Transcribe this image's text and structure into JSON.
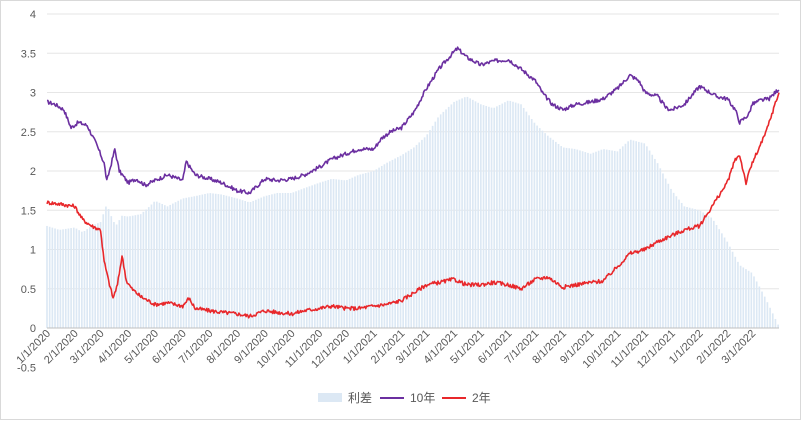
{
  "chart_data": {
    "type": "bar+line",
    "title": "",
    "xlabel": "",
    "ylabel": "",
    "ylim": [
      0,
      4
    ],
    "yticks": [
      "0",
      "0.5",
      "1",
      "1.5",
      "2",
      "2.5",
      "3",
      "3.5",
      "4"
    ],
    "ytick_values": [
      0,
      0.5,
      1,
      1.5,
      2,
      2.5,
      3,
      3.5,
      4
    ],
    "xlim": [
      "2020-01-01",
      "2022-03-31"
    ],
    "x_tick_labels": [
      "1/1/2020",
      "2/1/2020",
      "3/1/2020",
      "4/1/2020",
      "5/1/2020",
      "6/1/2020",
      "7/1/2020",
      "8/1/2020",
      "9/1/2020",
      "10/1/2020",
      "11/1/2020",
      "12/1/2020",
      "1/1/2021",
      "2/1/2021",
      "3/1/2021",
      "4/1/2021",
      "5/1/2021",
      "6/1/2021",
      "7/1/2021",
      "8/1/2021",
      "9/1/2021",
      "10/1/2021",
      "11/1/2021",
      "12/1/2021",
      "1/1/2022",
      "2/1/2022",
      "3/1/2022"
    ],
    "x_tick_dates": [
      "2020-01-01",
      "2020-02-01",
      "2020-03-01",
      "2020-04-01",
      "2020-05-01",
      "2020-06-01",
      "2020-07-01",
      "2020-08-01",
      "2020-09-01",
      "2020-10-01",
      "2020-11-01",
      "2020-12-01",
      "2021-01-01",
      "2021-02-01",
      "2021-03-01",
      "2021-04-01",
      "2021-05-01",
      "2021-06-01",
      "2021-07-01",
      "2021-08-01",
      "2021-09-01",
      "2021-10-01",
      "2021-11-01",
      "2021-12-01",
      "2022-01-01",
      "2022-02-01",
      "2022-03-01"
    ],
    "x_tick_overlap_label": "-0.5",
    "legend_position": "bottom",
    "legend": [
      {
        "name": "利差",
        "color": "#dce8f4",
        "kind": "bar"
      },
      {
        "name": "10年",
        "color": "#6b2fa0",
        "kind": "line"
      },
      {
        "name": "2年",
        "color": "#e8282b",
        "kind": "line"
      }
    ],
    "series": [
      {
        "name": "利差",
        "kind": "bar",
        "points": [
          [
            "2020-01-01",
            1.3
          ],
          [
            "2020-01-15",
            1.25
          ],
          [
            "2020-02-01",
            1.28
          ],
          [
            "2020-02-10",
            1.22
          ],
          [
            "2020-02-20",
            1.3
          ],
          [
            "2020-03-01",
            1.35
          ],
          [
            "2020-03-08",
            1.58
          ],
          [
            "2020-03-12",
            1.45
          ],
          [
            "2020-03-18",
            1.3
          ],
          [
            "2020-03-25",
            1.43
          ],
          [
            "2020-04-01",
            1.42
          ],
          [
            "2020-04-15",
            1.45
          ],
          [
            "2020-04-25",
            1.55
          ],
          [
            "2020-05-01",
            1.62
          ],
          [
            "2020-05-15",
            1.55
          ],
          [
            "2020-06-01",
            1.65
          ],
          [
            "2020-06-15",
            1.68
          ],
          [
            "2020-07-01",
            1.72
          ],
          [
            "2020-07-15",
            1.7
          ],
          [
            "2020-08-01",
            1.65
          ],
          [
            "2020-08-15",
            1.6
          ],
          [
            "2020-09-01",
            1.68
          ],
          [
            "2020-09-15",
            1.72
          ],
          [
            "2020-10-01",
            1.72
          ],
          [
            "2020-10-15",
            1.78
          ],
          [
            "2020-11-01",
            1.85
          ],
          [
            "2020-11-15",
            1.9
          ],
          [
            "2020-12-01",
            1.88
          ],
          [
            "2020-12-15",
            1.95
          ],
          [
            "2021-01-01",
            2.0
          ],
          [
            "2021-01-15",
            2.1
          ],
          [
            "2021-02-01",
            2.2
          ],
          [
            "2021-02-15",
            2.3
          ],
          [
            "2021-03-01",
            2.45
          ],
          [
            "2021-03-15",
            2.7
          ],
          [
            "2021-04-01",
            2.88
          ],
          [
            "2021-04-15",
            2.95
          ],
          [
            "2021-05-01",
            2.85
          ],
          [
            "2021-05-15",
            2.8
          ],
          [
            "2021-06-01",
            2.9
          ],
          [
            "2021-06-15",
            2.85
          ],
          [
            "2021-07-01",
            2.6
          ],
          [
            "2021-07-15",
            2.45
          ],
          [
            "2021-08-01",
            2.3
          ],
          [
            "2021-08-15",
            2.28
          ],
          [
            "2021-09-01",
            2.22
          ],
          [
            "2021-09-15",
            2.28
          ],
          [
            "2021-10-01",
            2.25
          ],
          [
            "2021-10-15",
            2.4
          ],
          [
            "2021-11-01",
            2.35
          ],
          [
            "2021-11-15",
            2.1
          ],
          [
            "2021-12-01",
            1.75
          ],
          [
            "2021-12-15",
            1.55
          ],
          [
            "2022-01-01",
            1.5
          ],
          [
            "2022-01-15",
            1.4
          ],
          [
            "2022-02-01",
            1.1
          ],
          [
            "2022-02-15",
            0.8
          ],
          [
            "2022-03-01",
            0.7
          ],
          [
            "2022-03-15",
            0.4
          ],
          [
            "2022-03-31",
            0.02
          ]
        ]
      },
      {
        "name": "10年",
        "kind": "line",
        "points": [
          [
            "2020-01-01",
            2.88
          ],
          [
            "2020-01-10",
            2.85
          ],
          [
            "2020-01-20",
            2.78
          ],
          [
            "2020-01-28",
            2.55
          ],
          [
            "2020-02-05",
            2.62
          ],
          [
            "2020-02-15",
            2.58
          ],
          [
            "2020-02-25",
            2.35
          ],
          [
            "2020-03-05",
            2.1
          ],
          [
            "2020-03-08",
            1.87
          ],
          [
            "2020-03-12",
            2.05
          ],
          [
            "2020-03-17",
            2.28
          ],
          [
            "2020-03-22",
            2.0
          ],
          [
            "2020-04-01",
            1.85
          ],
          [
            "2020-04-10",
            1.9
          ],
          [
            "2020-04-20",
            1.82
          ],
          [
            "2020-05-01",
            1.88
          ],
          [
            "2020-05-15",
            1.95
          ],
          [
            "2020-06-01",
            1.88
          ],
          [
            "2020-06-05",
            2.12
          ],
          [
            "2020-06-15",
            1.95
          ],
          [
            "2020-07-01",
            1.9
          ],
          [
            "2020-07-15",
            1.85
          ],
          [
            "2020-08-01",
            1.75
          ],
          [
            "2020-08-15",
            1.72
          ],
          [
            "2020-09-01",
            1.9
          ],
          [
            "2020-09-15",
            1.88
          ],
          [
            "2020-10-01",
            1.9
          ],
          [
            "2020-10-15",
            1.95
          ],
          [
            "2020-11-01",
            2.05
          ],
          [
            "2020-11-15",
            2.15
          ],
          [
            "2020-12-01",
            2.22
          ],
          [
            "2020-12-15",
            2.28
          ],
          [
            "2021-01-01",
            2.28
          ],
          [
            "2021-01-10",
            2.42
          ],
          [
            "2021-01-20",
            2.5
          ],
          [
            "2021-02-01",
            2.55
          ],
          [
            "2021-02-15",
            2.75
          ],
          [
            "2021-03-01",
            3.05
          ],
          [
            "2021-03-15",
            3.3
          ],
          [
            "2021-04-01",
            3.52
          ],
          [
            "2021-04-05",
            3.56
          ],
          [
            "2021-04-15",
            3.45
          ],
          [
            "2021-05-01",
            3.35
          ],
          [
            "2021-05-15",
            3.4
          ],
          [
            "2021-06-01",
            3.42
          ],
          [
            "2021-06-15",
            3.3
          ],
          [
            "2021-07-01",
            3.15
          ],
          [
            "2021-07-10",
            2.98
          ],
          [
            "2021-07-20",
            2.85
          ],
          [
            "2021-08-01",
            2.78
          ],
          [
            "2021-08-15",
            2.85
          ],
          [
            "2021-09-01",
            2.88
          ],
          [
            "2021-09-15",
            2.92
          ],
          [
            "2021-10-01",
            3.05
          ],
          [
            "2021-10-15",
            3.22
          ],
          [
            "2021-10-25",
            3.15
          ],
          [
            "2021-11-01",
            3.0
          ],
          [
            "2021-11-15",
            2.95
          ],
          [
            "2021-11-25",
            2.8
          ],
          [
            "2021-12-01",
            2.78
          ],
          [
            "2021-12-15",
            2.85
          ],
          [
            "2022-01-01",
            3.08
          ],
          [
            "2022-01-10",
            3.02
          ],
          [
            "2022-01-20",
            2.95
          ],
          [
            "2022-02-01",
            2.92
          ],
          [
            "2022-02-10",
            2.78
          ],
          [
            "2022-02-15",
            2.62
          ],
          [
            "2022-02-25",
            2.72
          ],
          [
            "2022-03-01",
            2.85
          ],
          [
            "2022-03-10",
            2.9
          ],
          [
            "2022-03-20",
            2.92
          ],
          [
            "2022-03-31",
            3.05
          ]
        ]
      },
      {
        "name": "2年",
        "kind": "line",
        "points": [
          [
            "2020-01-01",
            1.6
          ],
          [
            "2020-01-15",
            1.58
          ],
          [
            "2020-02-01",
            1.55
          ],
          [
            "2020-02-10",
            1.38
          ],
          [
            "2020-02-20",
            1.3
          ],
          [
            "2020-03-01",
            1.25
          ],
          [
            "2020-03-05",
            0.85
          ],
          [
            "2020-03-10",
            0.6
          ],
          [
            "2020-03-15",
            0.38
          ],
          [
            "2020-03-20",
            0.55
          ],
          [
            "2020-03-25",
            0.92
          ],
          [
            "2020-03-30",
            0.6
          ],
          [
            "2020-04-05",
            0.5
          ],
          [
            "2020-04-15",
            0.4
          ],
          [
            "2020-05-01",
            0.3
          ],
          [
            "2020-05-15",
            0.32
          ],
          [
            "2020-06-01",
            0.28
          ],
          [
            "2020-06-08",
            0.38
          ],
          [
            "2020-06-15",
            0.25
          ],
          [
            "2020-07-01",
            0.22
          ],
          [
            "2020-07-15",
            0.2
          ],
          [
            "2020-08-01",
            0.18
          ],
          [
            "2020-08-15",
            0.15
          ],
          [
            "2020-09-01",
            0.22
          ],
          [
            "2020-09-15",
            0.2
          ],
          [
            "2020-10-01",
            0.18
          ],
          [
            "2020-10-15",
            0.22
          ],
          [
            "2020-11-01",
            0.25
          ],
          [
            "2020-11-15",
            0.28
          ],
          [
            "2020-12-01",
            0.25
          ],
          [
            "2020-12-15",
            0.25
          ],
          [
            "2021-01-01",
            0.28
          ],
          [
            "2021-01-15",
            0.3
          ],
          [
            "2021-02-01",
            0.35
          ],
          [
            "2021-02-15",
            0.45
          ],
          [
            "2021-03-01",
            0.55
          ],
          [
            "2021-03-15",
            0.58
          ],
          [
            "2021-04-01",
            0.62
          ],
          [
            "2021-04-15",
            0.55
          ],
          [
            "2021-05-01",
            0.55
          ],
          [
            "2021-05-15",
            0.58
          ],
          [
            "2021-06-01",
            0.55
          ],
          [
            "2021-06-15",
            0.5
          ],
          [
            "2021-07-01",
            0.62
          ],
          [
            "2021-07-15",
            0.65
          ],
          [
            "2021-08-01",
            0.52
          ],
          [
            "2021-08-15",
            0.55
          ],
          [
            "2021-09-01",
            0.58
          ],
          [
            "2021-09-15",
            0.6
          ],
          [
            "2021-10-01",
            0.78
          ],
          [
            "2021-10-15",
            0.95
          ],
          [
            "2021-11-01",
            1.0
          ],
          [
            "2021-11-15",
            1.1
          ],
          [
            "2021-12-01",
            1.18
          ],
          [
            "2021-12-15",
            1.25
          ],
          [
            "2022-01-01",
            1.3
          ],
          [
            "2022-01-15",
            1.55
          ],
          [
            "2022-02-01",
            1.85
          ],
          [
            "2022-02-10",
            2.15
          ],
          [
            "2022-02-15",
            2.2
          ],
          [
            "2022-02-22",
            1.85
          ],
          [
            "2022-03-01",
            2.1
          ],
          [
            "2022-03-15",
            2.45
          ],
          [
            "2022-03-31",
            3.0
          ]
        ]
      }
    ]
  }
}
